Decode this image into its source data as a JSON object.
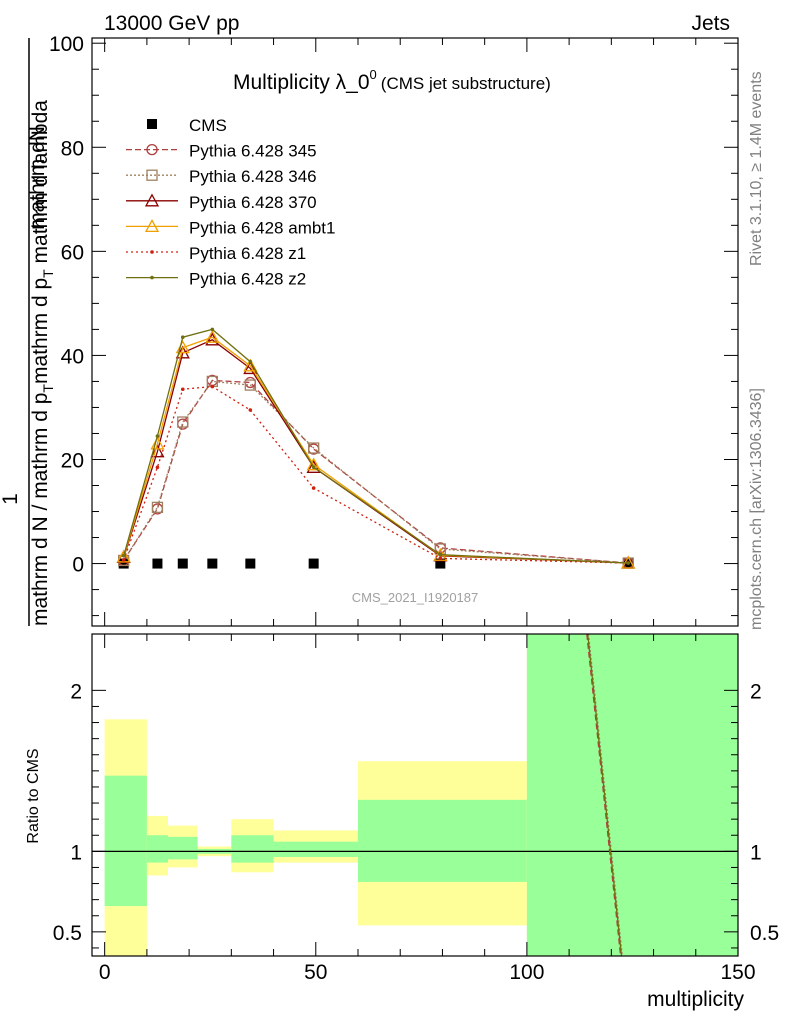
{
  "header": {
    "energy_label": "13000 GeV pp",
    "category_label": "Jets"
  },
  "side_labels": {
    "rivet": "Rivet 3.1.10, ≥ 1.4M events",
    "mcplots": "mcplots.cern.ch [arXiv:1306.3436]"
  },
  "chart_data": [
    {
      "type": "line",
      "title_main": "Multiplicity λ_0",
      "title_sup": "0",
      "title_sub": "(CMS jet substructure)",
      "watermark": "CMS_2021_I1920187",
      "ylabel_top": "1",
      "ylabel_num": "mathrm dN",
      "ylabel_den": "mathrm d N / mathrm d p_T mathrm d p_T mathrm d lambda",
      "ylabel_den_parts": [
        {
          "text": "mathrm d N / mathrm d p",
          "style": "normal"
        },
        {
          "text": "T",
          "style": "sub"
        },
        {
          "text": "mathrm d p",
          "style": "normal"
        },
        {
          "text": "T",
          "style": "sub"
        },
        {
          "text": " mathrm d lambda",
          "style": "normal"
        }
      ],
      "xlim": [
        -3,
        150
      ],
      "ylim": [
        -12,
        101
      ],
      "yticks": [
        0,
        20,
        40,
        60,
        80,
        100
      ],
      "legend_position": "top-left",
      "series": [
        {
          "name": "CMS",
          "color": "#000000",
          "marker": "square",
          "dash": "",
          "points": [
            [
              4.5,
              0
            ],
            [
              12.5,
              0
            ],
            [
              18.5,
              0
            ],
            [
              25.5,
              0
            ],
            [
              34.5,
              0
            ],
            [
              49.5,
              0
            ],
            [
              79.5,
              0
            ],
            [
              124,
              0
            ]
          ]
        },
        {
          "name": "Pythia 6.428 345",
          "color": "#b04040",
          "marker": "circle",
          "dash": "6,3",
          "points": [
            [
              4.5,
              0.6
            ],
            [
              12.5,
              10.5
            ],
            [
              18.5,
              26.8
            ],
            [
              25.5,
              35.2
            ],
            [
              34.5,
              34.8
            ],
            [
              49.5,
              22
            ],
            [
              79.5,
              3
            ],
            [
              124,
              0.1
            ]
          ]
        },
        {
          "name": "Pythia 6.428 346",
          "color": "#a08060",
          "marker": "square-open",
          "dash": "2,2",
          "points": [
            [
              4.5,
              0.6
            ],
            [
              12.5,
              10.8
            ],
            [
              18.5,
              27.2
            ],
            [
              25.5,
              35
            ],
            [
              34.5,
              34.3
            ],
            [
              49.5,
              22.2
            ],
            [
              79.5,
              2.8
            ],
            [
              124,
              0.1
            ]
          ]
        },
        {
          "name": "Pythia 6.428 370",
          "color": "#8b0000",
          "marker": "triangle",
          "dash": "",
          "points": [
            [
              4.5,
              1.2
            ],
            [
              12.5,
              21.5
            ],
            [
              18.5,
              40.5
            ],
            [
              25.5,
              43
            ],
            [
              34.5,
              37.5
            ],
            [
              49.5,
              18.5
            ],
            [
              79.5,
              1.5
            ],
            [
              124,
              0.1
            ]
          ]
        },
        {
          "name": "Pythia 6.428 ambt1",
          "color": "#f0a000",
          "marker": "triangle",
          "dash": "",
          "points": [
            [
              4.5,
              1.3
            ],
            [
              12.5,
              23
            ],
            [
              18.5,
              41.5
            ],
            [
              25.5,
              43.5
            ],
            [
              34.5,
              38
            ],
            [
              49.5,
              19
            ],
            [
              79.5,
              1.6
            ],
            [
              124,
              0.1
            ]
          ]
        },
        {
          "name": "Pythia 6.428 z1",
          "color": "#d02010",
          "marker": "dot",
          "dash": "2,3",
          "points": [
            [
              4.5,
              0.7
            ],
            [
              12.5,
              18.5
            ],
            [
              18.5,
              33.5
            ],
            [
              25.5,
              34
            ],
            [
              34.5,
              29.5
            ],
            [
              49.5,
              14.5
            ],
            [
              79.5,
              1
            ],
            [
              124,
              0.1
            ]
          ]
        },
        {
          "name": "Pythia 6.428 z2",
          "color": "#707010",
          "marker": "dot",
          "dash": "",
          "points": [
            [
              4.5,
              1.5
            ],
            [
              12.5,
              24.5
            ],
            [
              18.5,
              43.5
            ],
            [
              25.5,
              45
            ],
            [
              34.5,
              38.8
            ],
            [
              49.5,
              18.5
            ],
            [
              79.5,
              1.7
            ],
            [
              124,
              0.1
            ]
          ]
        }
      ]
    },
    {
      "type": "area",
      "ylabel": "Ratio to CMS",
      "xlabel": "multiplicity",
      "xlim": [
        -3,
        150
      ],
      "ylim": [
        0.35,
        2.35
      ],
      "xticks": [
        0,
        50,
        100,
        150
      ],
      "yticks": [
        0.5,
        1,
        2
      ],
      "ratio_line": 1,
      "bands": [
        {
          "x0": 0,
          "x1": 10,
          "yellow": [
            0.35,
            1.82
          ],
          "green": [
            0.66,
            1.47
          ]
        },
        {
          "x0": 10,
          "x1": 15,
          "yellow": [
            0.85,
            1.22
          ],
          "green": [
            0.93,
            1.1
          ]
        },
        {
          "x0": 15,
          "x1": 22,
          "yellow": [
            0.9,
            1.16
          ],
          "green": [
            0.95,
            1.09
          ]
        },
        {
          "x0": 22,
          "x1": 30,
          "yellow": [
            0.97,
            1.03
          ],
          "green": [
            0.985,
            1.015
          ]
        },
        {
          "x0": 30,
          "x1": 40,
          "yellow": [
            0.87,
            1.2
          ],
          "green": [
            0.93,
            1.1
          ]
        },
        {
          "x0": 40,
          "x1": 60,
          "yellow": [
            0.93,
            1.13
          ],
          "green": [
            0.965,
            1.06
          ]
        },
        {
          "x0": 60,
          "x1": 100,
          "yellow": [
            0.54,
            1.56
          ],
          "green": [
            0.81,
            1.32
          ]
        },
        {
          "x0": 100,
          "x1": 150,
          "yellow": [
            0.35,
            2.35
          ],
          "green": [
            0.35,
            2.35
          ]
        }
      ],
      "ratio_lines": [
        {
          "color": "#b04040",
          "dash": "6,3",
          "points": [
            [
              114.2,
              2.35
            ],
            [
              122.2,
              0.35
            ]
          ]
        },
        {
          "color": "#a08060",
          "dash": "2,2",
          "points": [
            [
              114.6,
              2.35
            ],
            [
              122.6,
              0.35
            ]
          ]
        },
        {
          "color": "#707010",
          "dash": "",
          "points": [
            [
              114.4,
              2.35
            ],
            [
              122.4,
              0.35
            ]
          ]
        }
      ],
      "colors": {
        "yellow": "#ffff99",
        "green": "#99ff99"
      }
    }
  ]
}
